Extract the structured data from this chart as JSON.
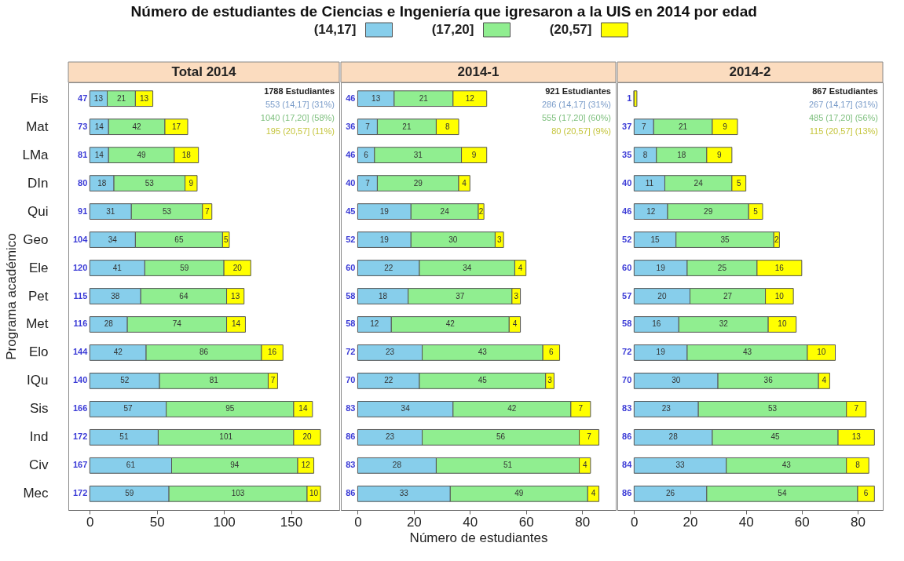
{
  "chart_data": [
    {
      "type": "bar",
      "orientation": "horizontal",
      "stacked": true,
      "title": "Número de estudiantes de Ciencias e Ingeniería que igresaron a la UIS en 2014 por edad",
      "subtitle": "Total 2014",
      "ylabel": "Programa académico",
      "legend": "top",
      "data_labels": true,
      "categories": [
        "Fis",
        "Mat",
        "LMa",
        "DIn",
        "Qui",
        "Geo",
        "Ele",
        "Pet",
        "Met",
        "Elo",
        "IQu",
        "Sis",
        "Ind",
        "Civ",
        "Mec"
      ],
      "series": [
        {
          "name": "(14,17]",
          "color": "#87ceeb",
          "values": [
            13,
            14,
            14,
            18,
            31,
            34,
            41,
            38,
            28,
            42,
            52,
            57,
            51,
            61,
            59
          ]
        },
        {
          "name": "(17,20]",
          "color": "#90ee90",
          "values": [
            21,
            42,
            49,
            53,
            53,
            65,
            59,
            64,
            74,
            86,
            81,
            95,
            101,
            94,
            103
          ]
        },
        {
          "name": "(20,57]",
          "color": "#ffff00",
          "values": [
            13,
            17,
            18,
            9,
            7,
            5,
            20,
            13,
            14,
            16,
            7,
            14,
            20,
            12,
            10
          ]
        }
      ],
      "totals": [
        "47",
        "73",
        "81",
        "80",
        "91",
        "104",
        "120",
        "115",
        "116",
        "144",
        "140",
        "166",
        "172",
        "167",
        "172"
      ],
      "xlim": [
        -16,
        186
      ],
      "xticks": [
        0,
        50,
        100,
        150
      ],
      "annotations": [
        "1788 Estudiantes",
        "553 (14,17] (31%)",
        "1040 (17,20] (58%)",
        "195 (20,57] (11%)"
      ]
    },
    {
      "type": "bar",
      "orientation": "horizontal",
      "stacked": true,
      "subtitle": "2014-1",
      "xlabel": "Número de estudiantes",
      "tick_labels": "x",
      "data_labels": true,
      "series": [
        {
          "color": "#87ceeb",
          "values": [
            13,
            7,
            6,
            7,
            19,
            19,
            22,
            18,
            12,
            23,
            22,
            34,
            23,
            28,
            33
          ]
        },
        {
          "color": "#90ee90",
          "values": [
            21,
            21,
            31,
            29,
            24,
            30,
            34,
            37,
            42,
            43,
            45,
            42,
            56,
            51,
            49
          ]
        },
        {
          "color": "#ffff00",
          "values": [
            12,
            8,
            9,
            4,
            2,
            3,
            4,
            3,
            4,
            6,
            3,
            7,
            7,
            4,
            4
          ]
        }
      ],
      "totals": [
        "46",
        "36",
        "46",
        "40",
        "45",
        "52",
        "60",
        "58",
        "58",
        "72",
        "70",
        "83",
        "86",
        "83",
        "86"
      ],
      "xlim": [
        -6,
        92
      ],
      "xticks": [
        0,
        20,
        40,
        60,
        80
      ],
      "annotations": [
        "921 Estudiantes",
        "286 (14,17] (31%)",
        "555 (17,20] (60%)",
        "80 (20,57] (9%)"
      ]
    },
    {
      "type": "bar",
      "orientation": "horizontal",
      "stacked": true,
      "subtitle": "2014-2",
      "tick_labels": "x",
      "series": [
        {
          "color": "#87ceeb",
          "values": [
            0,
            7,
            8,
            11,
            12,
            15,
            19,
            20,
            16,
            19,
            30,
            23,
            28,
            33,
            26
          ],
          "value_labels": [
            null,
            "7",
            "8",
            "11",
            "12",
            "15",
            "19",
            "20",
            "16",
            "19",
            "30",
            "23",
            "28",
            "33",
            "26"
          ]
        },
        {
          "color": "#90ee90",
          "values": [
            0,
            21,
            18,
            24,
            29,
            35,
            25,
            27,
            32,
            43,
            36,
            53,
            45,
            43,
            54
          ],
          "value_labels": [
            null,
            "21",
            "18",
            "24",
            "29",
            "35",
            "25",
            "27",
            "32",
            "43",
            "36",
            "53",
            "45",
            "43",
            "54"
          ]
        },
        {
          "color": "#ffff00",
          "values": [
            1,
            9,
            9,
            5,
            5,
            2,
            16,
            10,
            10,
            10,
            4,
            7,
            13,
            8,
            6
          ],
          "value_labels": [
            null,
            "9",
            "9",
            "5",
            "5",
            "2",
            "16",
            "10",
            "10",
            "10",
            "4",
            "7",
            "13",
            "8",
            "6"
          ]
        }
      ],
      "totals": [
        "1",
        "37",
        "35",
        "40",
        "46",
        "52",
        "60",
        "57",
        "58",
        "72",
        "70",
        "83",
        "86",
        "84",
        "86"
      ],
      "xlim": [
        -6,
        89
      ],
      "xticks": [
        0,
        20,
        40,
        60,
        80
      ],
      "annotations": [
        "867 Estudiantes",
        "267 (14,17] (31%)",
        "485 (17,20] (56%)",
        "115 (20,57] (13%)"
      ]
    }
  ]
}
